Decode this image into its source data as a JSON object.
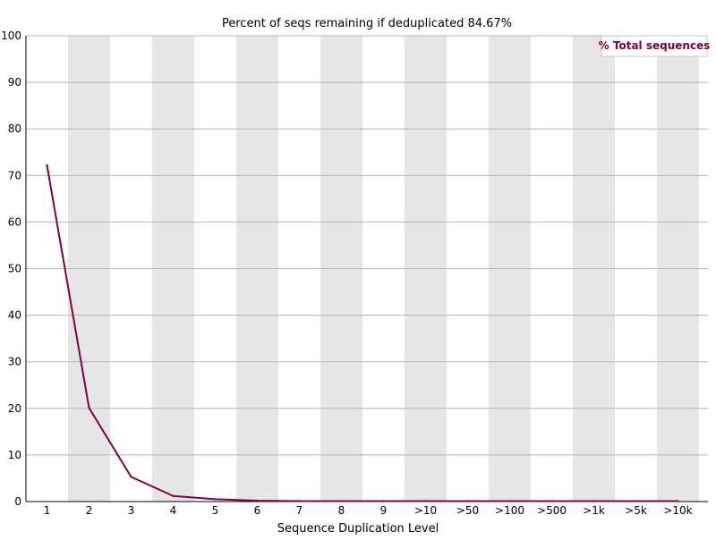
{
  "chart_data": {
    "type": "line",
    "title": "Percent of seqs remaining if deduplicated 84.67%",
    "xlabel": "Sequence Duplication Level",
    "ylabel": "",
    "ylim": [
      0,
      100
    ],
    "y_ticks": [
      0,
      10,
      20,
      30,
      40,
      50,
      60,
      70,
      80,
      90,
      100
    ],
    "categories": [
      "1",
      "2",
      "3",
      "4",
      "5",
      "6",
      "7",
      "8",
      "9",
      ">10",
      ">50",
      ">100",
      ">500",
      ">1k",
      ">5k",
      ">10k"
    ],
    "series": [
      {
        "name": "% Total sequences",
        "color": "#800040",
        "values": [
          72.2,
          20.1,
          5.3,
          1.2,
          0.5,
          0.2,
          0.1,
          0.1,
          0.1,
          0.1,
          0.1,
          0.1,
          0.1,
          0.1,
          0.1,
          0.1
        ]
      }
    ],
    "grid": true,
    "alternating_band_color": "#e6e6e6",
    "legend_placement": "top-right"
  }
}
